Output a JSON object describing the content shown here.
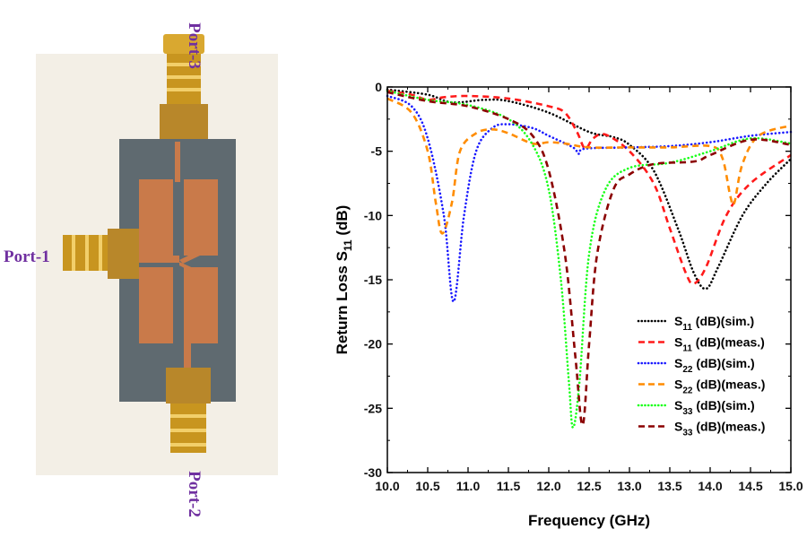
{
  "photo": {
    "port_labels": {
      "port1": "Port-1",
      "port2": "Port-2",
      "port3": "Port-3"
    },
    "label_color": "#7030a0"
  },
  "chart_data": {
    "type": "line",
    "title": "",
    "xlabel": "Frequency (GHz)",
    "ylabel": {
      "main": "Return Loss S",
      "sub": "11",
      "rest": " (dB)"
    },
    "xlim": [
      10.0,
      15.0
    ],
    "ylim": [
      -30,
      0
    ],
    "xticks": [
      "10.0",
      "10.5",
      "11.0",
      "11.5",
      "12.0",
      "12.5",
      "13.0",
      "13.5",
      "14.0",
      "14.5",
      "15.0"
    ],
    "yticks": [
      "0",
      "-5",
      "-10",
      "-15",
      "-20",
      "-25",
      "-30"
    ],
    "grid": false,
    "legend_position": "bottom-right",
    "series": [
      {
        "name": {
          "main": "S",
          "sub": "11",
          "rest": " (dB)(sim.)"
        },
        "color": "#000000",
        "style": "dotted",
        "x": [
          10.0,
          10.5,
          10.8,
          11.2,
          11.5,
          12.0,
          12.5,
          12.8,
          13.0,
          13.3,
          13.6,
          13.8,
          13.95,
          14.1,
          14.4,
          14.7,
          15.0
        ],
        "y": [
          -0.2,
          -0.6,
          -1.2,
          -1.0,
          -1.1,
          -2.0,
          -3.5,
          -3.9,
          -4.5,
          -6.5,
          -11,
          -14.5,
          -15.7,
          -14,
          -10,
          -7.5,
          -5.6
        ]
      },
      {
        "name": {
          "main": "S",
          "sub": "11",
          "rest": " (dB)(meas.)"
        },
        "color": "#ff1a1a",
        "style": "dashed",
        "x": [
          10.0,
          10.3,
          10.5,
          10.7,
          11.0,
          11.5,
          12.0,
          12.2,
          12.35,
          12.45,
          12.55,
          12.7,
          13.0,
          13.3,
          13.5,
          13.7,
          13.8,
          13.95,
          14.2,
          14.5,
          15.0
        ],
        "y": [
          -0.3,
          -0.6,
          -1.0,
          -0.8,
          -0.7,
          -0.9,
          -1.5,
          -2.0,
          -3.5,
          -4.8,
          -4.0,
          -3.7,
          -5.0,
          -7.5,
          -11,
          -14.5,
          -15.3,
          -14,
          -10,
          -7.5,
          -5.3
        ]
      },
      {
        "name": {
          "main": "S",
          "sub": "22",
          "rest": " (dB)(sim.)"
        },
        "color": "#1a1aff",
        "style": "dotted",
        "x": [
          10.0,
          10.3,
          10.5,
          10.7,
          10.82,
          10.95,
          11.1,
          11.3,
          11.5,
          11.8,
          12.0,
          12.3,
          12.37,
          12.45,
          13.0,
          13.5,
          14.0,
          14.5,
          15.0
        ],
        "y": [
          -0.7,
          -1.5,
          -4,
          -10,
          -16.7,
          -10,
          -5,
          -3.2,
          -2.9,
          -3.2,
          -3.8,
          -4.7,
          -5.2,
          -4.8,
          -4.7,
          -4.6,
          -4.3,
          -3.8,
          -3.5
        ]
      },
      {
        "name": {
          "main": "S",
          "sub": "22",
          "rest": " (dB)(meas.)"
        },
        "color": "#ff8c00",
        "style": "dashed",
        "x": [
          10.0,
          10.3,
          10.5,
          10.6,
          10.68,
          10.8,
          10.9,
          11.1,
          11.3,
          11.5,
          11.8,
          12.0,
          12.2,
          12.5,
          13.0,
          13.5,
          14.0,
          14.15,
          14.25,
          14.3,
          14.4,
          14.6,
          15.0
        ],
        "y": [
          -0.9,
          -2.0,
          -5,
          -9,
          -11.4,
          -9,
          -5,
          -3.6,
          -3.3,
          -3.6,
          -4.4,
          -4.3,
          -4.4,
          -4.7,
          -4.7,
          -4.7,
          -4.6,
          -5.5,
          -8.5,
          -9.0,
          -6,
          -3.8,
          -3.0
        ]
      },
      {
        "name": {
          "main": "S",
          "sub": "33",
          "rest": " (dB)(sim.)"
        },
        "color": "#1aff1a",
        "style": "dotted",
        "x": [
          10.0,
          10.5,
          11.0,
          11.5,
          11.8,
          12.0,
          12.15,
          12.25,
          12.3,
          12.38,
          12.5,
          12.7,
          13.0,
          13.5,
          14.0,
          14.5,
          15.0
        ],
        "y": [
          -0.3,
          -1.0,
          -1.4,
          -2.5,
          -4.5,
          -8,
          -15,
          -23,
          -26.5,
          -23,
          -13,
          -8,
          -6.3,
          -5.9,
          -5.0,
          -4.0,
          -4.4
        ]
      },
      {
        "name": {
          "main": "S",
          "sub": "33",
          "rest": " (dB)(meas.)"
        },
        "color": "#8b0000",
        "style": "dashed",
        "x": [
          10.0,
          10.5,
          11.0,
          11.5,
          11.8,
          12.0,
          12.2,
          12.33,
          12.42,
          12.5,
          12.6,
          12.8,
          13.0,
          13.3,
          13.8,
          14.0,
          14.5,
          15.0
        ],
        "y": [
          -0.4,
          -1.1,
          -1.5,
          -2.5,
          -3.8,
          -6.5,
          -13,
          -21,
          -26.3,
          -20,
          -13,
          -8,
          -6.8,
          -6.0,
          -5.8,
          -5.3,
          -4.1,
          -4.5
        ]
      }
    ]
  }
}
